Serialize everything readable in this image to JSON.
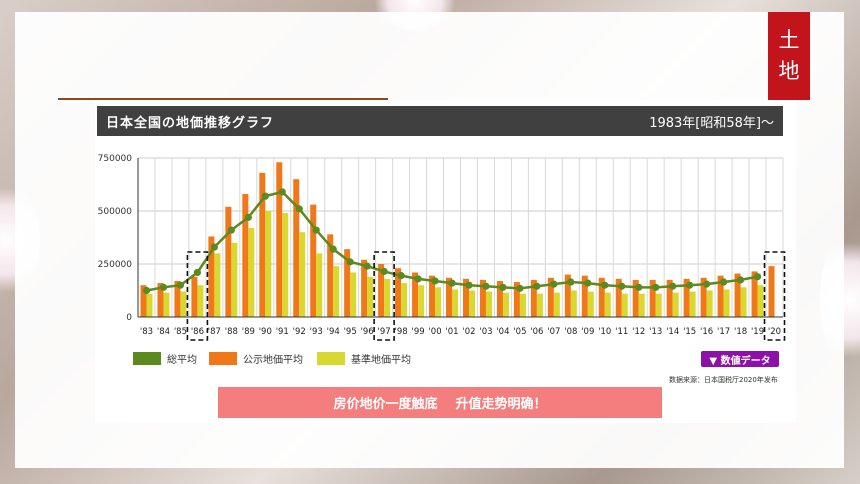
{
  "slide": {
    "tag": [
      "土",
      "地"
    ],
    "panel_title": "日本全国の地価推移グラフ",
    "panel_subtitle": "1983年[昭和58年]〜",
    "legend": [
      "総平均",
      "公示地価平均",
      "基準地価平均"
    ],
    "data_button": "▼ 数値データ",
    "source": "数据来源：日本国税厅2020年发布",
    "banner": "房价地价一度触底    升值走势明确！"
  },
  "colors": {
    "total": "#5c8a1e",
    "public": "#f07818",
    "standard": "#d8d830",
    "tag": "#c3141b",
    "banner": "#f47d7d"
  },
  "chart_data": {
    "type": "bar",
    "categories": [
      "'83",
      "'84",
      "'85",
      "'86",
      "'87",
      "'88",
      "'89",
      "'90",
      "'91",
      "'92",
      "'93",
      "'94",
      "'95",
      "'96",
      "'97",
      "'98",
      "'99",
      "'00",
      "'01",
      "'02",
      "'03",
      "'04",
      "'05",
      "'06",
      "'07",
      "'08",
      "'09",
      "'10",
      "'11",
      "'12",
      "'13",
      "'14",
      "'15",
      "'16",
      "'17",
      "'18",
      "'19",
      "'20"
    ],
    "series": [
      {
        "name": "公示地価平均",
        "values": [
          150000,
          160000,
          170000,
          190000,
          380000,
          520000,
          580000,
          680000,
          730000,
          650000,
          530000,
          390000,
          320000,
          270000,
          250000,
          230000,
          210000,
          195000,
          185000,
          180000,
          175000,
          170000,
          165000,
          175000,
          185000,
          200000,
          195000,
          185000,
          180000,
          175000,
          175000,
          175000,
          180000,
          185000,
          195000,
          205000,
          215000,
          240000
        ]
      },
      {
        "name": "基準地価平均",
        "values": [
          110000,
          115000,
          120000,
          150000,
          300000,
          350000,
          420000,
          500000,
          490000,
          400000,
          300000,
          240000,
          210000,
          190000,
          180000,
          160000,
          150000,
          140000,
          130000,
          125000,
          120000,
          115000,
          110000,
          110000,
          115000,
          125000,
          120000,
          115000,
          110000,
          110000,
          110000,
          115000,
          120000,
          125000,
          130000,
          140000,
          150000,
          0
        ]
      },
      {
        "name": "総平均",
        "values": [
          125000,
          140000,
          150000,
          210000,
          330000,
          410000,
          470000,
          570000,
          590000,
          510000,
          410000,
          320000,
          260000,
          240000,
          215000,
          195000,
          180000,
          170000,
          160000,
          150000,
          145000,
          140000,
          135000,
          145000,
          155000,
          165000,
          160000,
          150000,
          145000,
          140000,
          140000,
          145000,
          150000,
          155000,
          165000,
          175000,
          190000,
          null
        ]
      }
    ],
    "ylim": [
      0,
      750000
    ],
    "yticks": [
      0,
      250000,
      500000,
      750000
    ],
    "grid": true,
    "highlighted": [
      "'86",
      "'97",
      "'20"
    ]
  }
}
